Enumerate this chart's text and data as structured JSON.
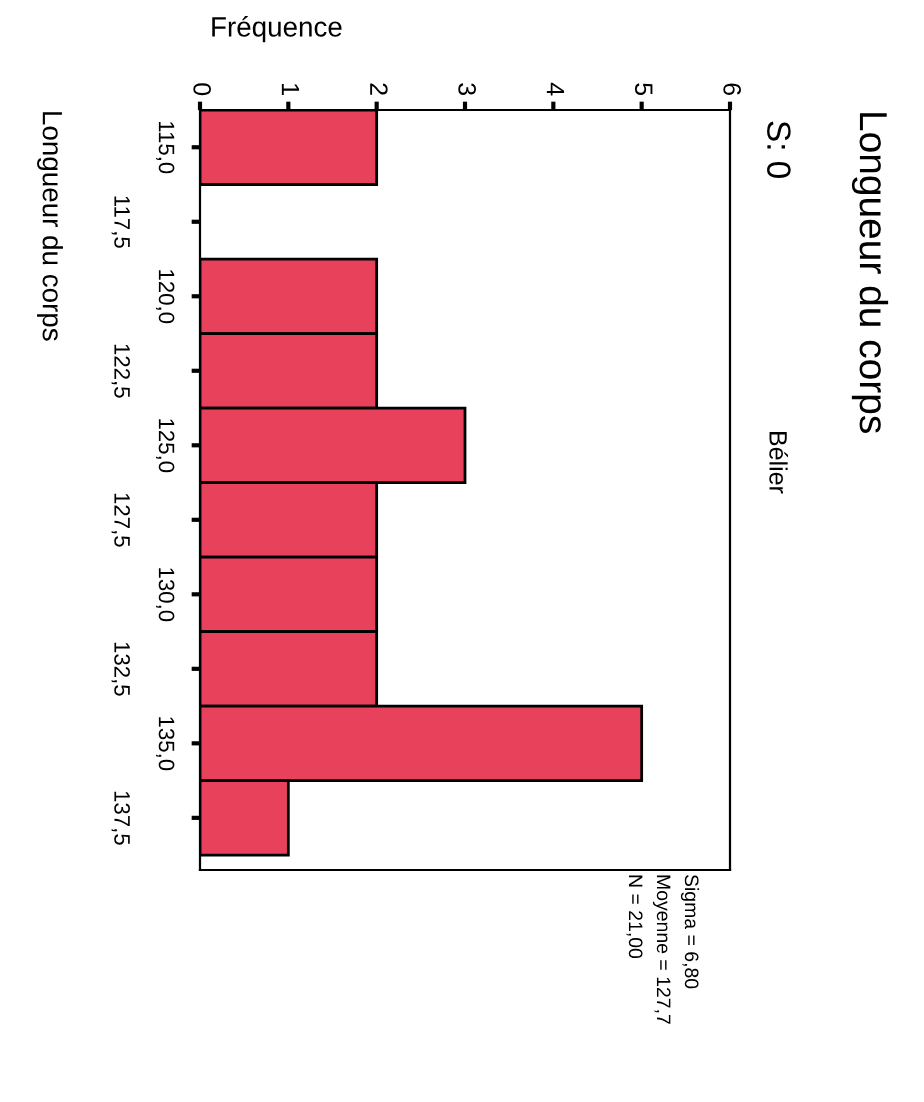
{
  "chart_data": {
    "type": "bar",
    "orientation": "horizontal",
    "title": "Longueur du corps",
    "subtitle": "S: 0",
    "xlabel": "Fréquence",
    "ylabel": "Longueur du corps",
    "categories": [
      "115,0",
      "117,5",
      "120,0",
      "122,5",
      "125,0",
      "127,5",
      "130,0",
      "132,5",
      "135,0",
      "137,5"
    ],
    "values": [
      2,
      0,
      2,
      2,
      3,
      2,
      2,
      2,
      5,
      1
    ],
    "color": "#e8415c",
    "xlim": [
      0,
      6
    ],
    "xticks": [
      0,
      1,
      2,
      3,
      4,
      5,
      6
    ],
    "grid": false,
    "legend": false,
    "annotations": [
      "Bélier",
      "Sigma = 6,80",
      "Moyenne = 127,7",
      "N = 21,00"
    ]
  }
}
